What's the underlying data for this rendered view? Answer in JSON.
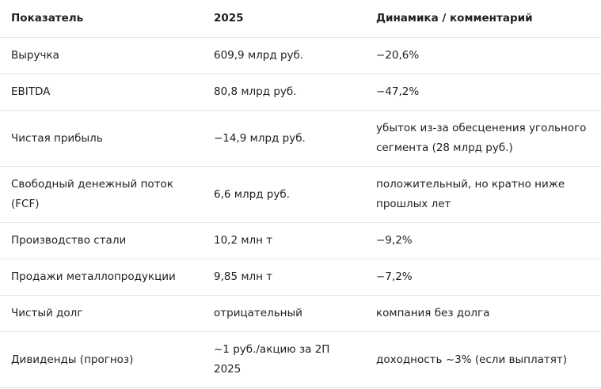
{
  "table": {
    "header": [
      "Показатель",
      "2025",
      "Динамика / комментарий"
    ],
    "rows": [
      [
        "Выручка",
        "609,9 млрд руб.",
        "−20,6%"
      ],
      [
        "EBITDA",
        "80,8 млрд руб.",
        "−47,2%"
      ],
      [
        "Чистая прибыль",
        "−14,9 млрд руб.",
        "убыток из-за обесценения угольного сегмента (28 млрд руб.)"
      ],
      [
        "Свободный денежный поток (FCF)",
        "6,6 млрд руб.",
        "положительный, но кратно ниже прошлых лет"
      ],
      [
        "Производство стали",
        "10,2 млн т",
        "−9,2%"
      ],
      [
        "Продажи металлопродукции",
        "9,85 млн т",
        "−7,2%"
      ],
      [
        "Чистый долг",
        "отрицательный",
        "компания без долга"
      ],
      [
        "Дивиденды (прогноз)",
        "~1 руб./акцию за 2П 2025",
        "доходность ~3% (если выплатят)"
      ]
    ]
  }
}
